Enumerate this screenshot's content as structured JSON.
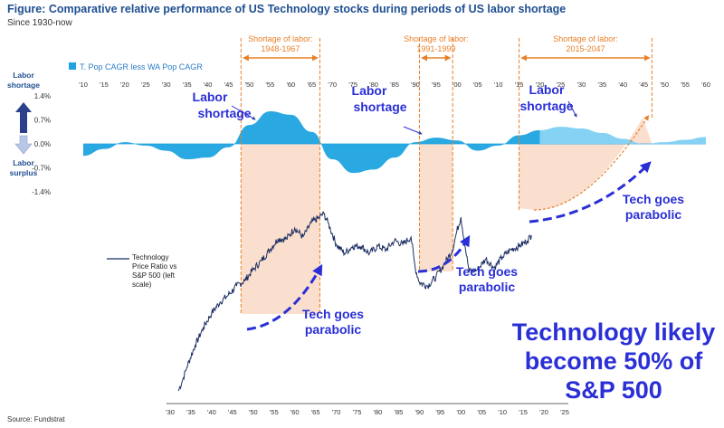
{
  "colors": {
    "accent_blue": "#2a2fd6",
    "orange": "#e8802a",
    "shade": "#f9d9c6",
    "bar_dark": "#1ea3e0",
    "bar_light": "#7fd0f3",
    "line": "#1b2d63",
    "arrow_dark": "#2b3f8a",
    "arrow_light": "#b9c7e6"
  },
  "chart_data": [
    {
      "type": "area",
      "title": "Figure: Comparative relative performance of US Technology stocks during periods of US labor shortage",
      "subtitle": "Since 1930-now",
      "legend": "T. Pop CAGR less WA Pop CAGR",
      "y_axis_side_labels": {
        "top": "Labor shortage",
        "bottom": "Labor surplus"
      },
      "x_ticks": [
        "'10",
        "'15",
        "'20",
        "'25",
        "'30",
        "'35",
        "'40",
        "'45",
        "'50",
        "'55",
        "'60",
        "'65",
        "'70",
        "'75",
        "'80",
        "'85",
        "'90",
        "'95",
        "'00",
        "'05",
        "'10",
        "'15",
        "'20",
        "'25",
        "'30",
        "'35",
        "'40",
        "'45",
        "'50",
        "'55",
        "'60"
      ],
      "y_ticks": [
        "1.4%",
        "0.7%",
        "0.0%",
        "-0.7%",
        "-1.4%"
      ],
      "ylim": [
        -1.4,
        1.4
      ],
      "x_range": [
        1910,
        2060
      ],
      "projection_start": 2020,
      "series": [
        {
          "x": [
            1910,
            1915,
            1920,
            1925,
            1930,
            1935,
            1940,
            1945,
            1950,
            1955,
            1960,
            1965,
            1970,
            1975,
            1980,
            1985,
            1990,
            1995,
            2000,
            2005,
            2010,
            2015,
            2020,
            2025,
            2030,
            2035,
            2040,
            2045,
            2050,
            2055,
            2060
          ],
          "y": [
            -0.35,
            -0.15,
            0.05,
            -0.05,
            -0.2,
            -0.45,
            -0.4,
            -0.1,
            0.55,
            0.95,
            0.85,
            0.35,
            -0.45,
            -0.85,
            -0.75,
            -0.4,
            0.05,
            0.18,
            0.1,
            -0.2,
            -0.05,
            0.25,
            0.4,
            0.5,
            0.45,
            0.32,
            0.15,
            0.0,
            0.05,
            0.12,
            0.2
          ]
        }
      ],
      "annotations": [
        {
          "text": "Labor shortage",
          "x": 1958
        },
        {
          "text": "Labor shortage",
          "x": 1990
        },
        {
          "text": "Labor shortage",
          "x": 2022
        }
      ]
    },
    {
      "type": "line",
      "legend": "Technology Price Ratio vs S&P 500 (left scale)",
      "x_ticks": [
        "'30",
        "'35",
        "'40",
        "'45",
        "'50",
        "'55",
        "'60",
        "'65",
        "'70",
        "'75",
        "'80",
        "'85",
        "'90",
        "'95",
        "'00",
        "'05",
        "'10",
        "'15",
        "'20",
        "'25"
      ],
      "x_range": [
        1930,
        2025
      ],
      "series": [
        {
          "name": "Technology Price Ratio vs S&P 500 (left scale)",
          "x": [
            1932,
            1933,
            1934,
            1936,
            1938,
            1940,
            1942,
            1944,
            1946,
            1948,
            1950,
            1952,
            1954,
            1956,
            1958,
            1960,
            1962,
            1964,
            1966,
            1967,
            1968,
            1970,
            1972,
            1974,
            1976,
            1978,
            1980,
            1982,
            1984,
            1986,
            1988,
            1989,
            1990,
            1992,
            1994,
            1996,
            1998,
            1999,
            2000,
            2001,
            2002,
            2004,
            2006,
            2008,
            2010,
            2012,
            2014,
            2016,
            2017
          ],
          "y": [
            0.02,
            0.08,
            0.15,
            0.27,
            0.37,
            0.45,
            0.51,
            0.55,
            0.6,
            0.63,
            0.69,
            0.74,
            0.8,
            0.86,
            0.86,
            0.92,
            0.87,
            0.95,
            0.98,
            1.0,
            0.95,
            0.83,
            0.78,
            0.82,
            0.82,
            0.78,
            0.82,
            0.8,
            0.85,
            0.83,
            0.87,
            0.7,
            0.62,
            0.6,
            0.65,
            0.72,
            0.8,
            0.9,
            0.98,
            0.82,
            0.68,
            0.69,
            0.75,
            0.7,
            0.76,
            0.8,
            0.82,
            0.85,
            0.88
          ]
        }
      ]
    }
  ],
  "shortage_periods": [
    {
      "label": "Shortage of labor:",
      "years_text": "1948-1967",
      "start": 1948,
      "end": 1967
    },
    {
      "label": "Shortage of labor:",
      "years_text": "1991-1999",
      "start": 1991,
      "end": 1999
    },
    {
      "label": "Shortage of labor:",
      "years_text": "2015-2047",
      "start": 2015,
      "end": 2047
    }
  ],
  "tech_callouts": [
    {
      "text": "Tech goes parabolic"
    },
    {
      "text": "Tech goes parabolic"
    },
    {
      "text": "Tech goes parabolic"
    }
  ],
  "headline": "Technology likely become 50% of S&P 500",
  "source": "Source: Fundstrat"
}
